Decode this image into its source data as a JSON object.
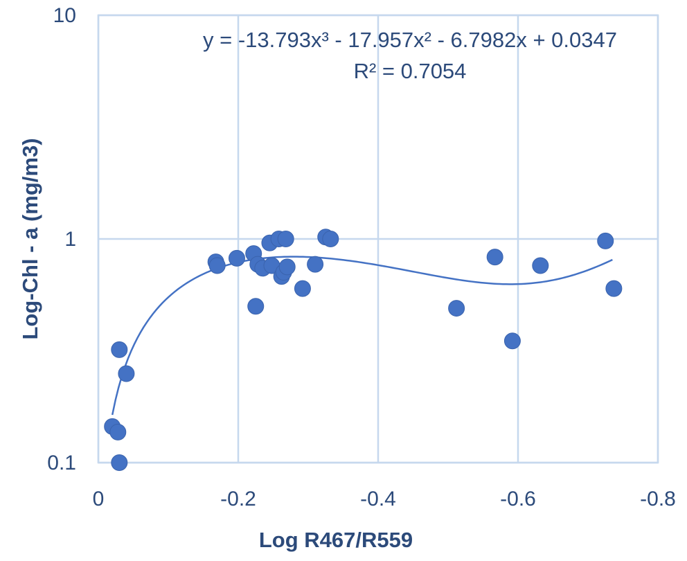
{
  "chart_data": {
    "type": "scatter",
    "xlabel": "Log R467/R559",
    "ylabel": "Log-Chl - a (mg/m3)",
    "xlim": [
      0,
      -0.8
    ],
    "ylim": [
      0.1,
      10
    ],
    "y_scale": "log",
    "grid": true,
    "x_ticks": [
      "0",
      "-0.2",
      "-0.4",
      "-0.6",
      "-0.8"
    ],
    "y_ticks": [
      "0.1",
      "1",
      "10"
    ],
    "trendline": {
      "type": "polynomial",
      "order": 3,
      "equation": "y = -13.793x³ - 17.957x² - 6.7982x + 0.0347",
      "r_squared": "R² = 0.7054",
      "coefficients": [
        -13.793,
        -17.957,
        -6.7982,
        0.0347
      ],
      "x_range": [
        -0.02,
        -0.735
      ]
    },
    "points": [
      {
        "x": -0.02,
        "y": 0.145
      },
      {
        "x": -0.028,
        "y": 0.137
      },
      {
        "x": -0.03,
        "y": 0.1
      },
      {
        "x": -0.03,
        "y": 0.32
      },
      {
        "x": -0.04,
        "y": 0.25
      },
      {
        "x": -0.168,
        "y": 0.79
      },
      {
        "x": -0.17,
        "y": 0.76
      },
      {
        "x": -0.198,
        "y": 0.82
      },
      {
        "x": -0.222,
        "y": 0.86
      },
      {
        "x": -0.225,
        "y": 0.5
      },
      {
        "x": -0.228,
        "y": 0.77
      },
      {
        "x": -0.235,
        "y": 0.74
      },
      {
        "x": -0.245,
        "y": 0.96
      },
      {
        "x": -0.248,
        "y": 0.76
      },
      {
        "x": -0.258,
        "y": 1.0
      },
      {
        "x": -0.262,
        "y": 0.68
      },
      {
        "x": -0.265,
        "y": 0.71
      },
      {
        "x": -0.268,
        "y": 1.0
      },
      {
        "x": -0.27,
        "y": 0.75
      },
      {
        "x": -0.292,
        "y": 0.6
      },
      {
        "x": -0.31,
        "y": 0.77
      },
      {
        "x": -0.325,
        "y": 1.02
      },
      {
        "x": -0.332,
        "y": 1.0
      },
      {
        "x": -0.512,
        "y": 0.49
      },
      {
        "x": -0.567,
        "y": 0.83
      },
      {
        "x": -0.592,
        "y": 0.35
      },
      {
        "x": -0.632,
        "y": 0.76
      },
      {
        "x": -0.725,
        "y": 0.98
      },
      {
        "x": -0.737,
        "y": 0.6
      }
    ]
  }
}
